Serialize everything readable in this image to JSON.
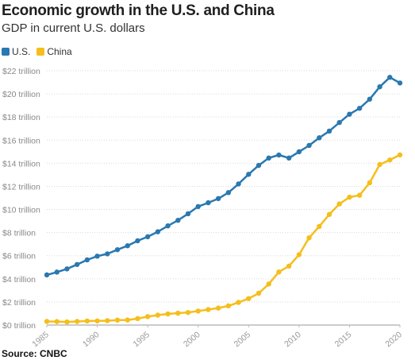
{
  "chart_data": {
    "type": "line",
    "title": "Economic growth in the U.S. and China",
    "subtitle": "GDP in current U.S. dollars",
    "xlabel": "",
    "ylabel": "",
    "x": [
      1985,
      1986,
      1987,
      1988,
      1989,
      1990,
      1991,
      1992,
      1993,
      1994,
      1995,
      1996,
      1997,
      1998,
      1999,
      2000,
      2001,
      2002,
      2003,
      2004,
      2005,
      2006,
      2007,
      2008,
      2009,
      2010,
      2011,
      2012,
      2013,
      2014,
      2015,
      2016,
      2017,
      2018,
      2019,
      2020
    ],
    "xticks": [
      1985,
      1990,
      1995,
      2000,
      2005,
      2010,
      2015,
      2020
    ],
    "xlim": [
      1985,
      2020
    ],
    "yticks": [
      0,
      2,
      4,
      6,
      8,
      10,
      12,
      14,
      16,
      18,
      20,
      22
    ],
    "ytick_labels": [
      "$0 trillion",
      "$2 trillion",
      "$4 trillion",
      "$6 trillion",
      "$8 trillion",
      "$10 trillion",
      "$12 trillion",
      "$14 trillion",
      "$16 trillion",
      "$18 trillion",
      "$20 trillion",
      "$22 trillion"
    ],
    "ylim": [
      0,
      22
    ],
    "grid": true,
    "legend_position": "top-left",
    "series": [
      {
        "name": "U.S.",
        "color": "#2a78b0",
        "values": [
          4.34,
          4.58,
          4.86,
          5.24,
          5.64,
          5.96,
          6.16,
          6.52,
          6.86,
          7.29,
          7.64,
          8.07,
          8.58,
          9.06,
          9.63,
          10.25,
          10.58,
          10.94,
          11.46,
          12.21,
          13.04,
          13.81,
          14.45,
          14.71,
          14.45,
          14.99,
          15.54,
          16.2,
          16.78,
          17.52,
          18.24,
          18.75,
          19.54,
          20.61,
          21.43,
          20.94
        ]
      },
      {
        "name": "China",
        "color": "#f5be1b",
        "values": [
          0.31,
          0.3,
          0.27,
          0.31,
          0.35,
          0.36,
          0.38,
          0.43,
          0.44,
          0.56,
          0.73,
          0.86,
          0.96,
          1.03,
          1.09,
          1.21,
          1.34,
          1.47,
          1.66,
          1.96,
          2.29,
          2.75,
          3.55,
          4.59,
          5.1,
          6.09,
          7.55,
          8.53,
          9.57,
          10.48,
          11.06,
          11.23,
          12.31,
          13.89,
          14.28,
          14.72
        ]
      }
    ]
  },
  "source": "Source: CNBC"
}
